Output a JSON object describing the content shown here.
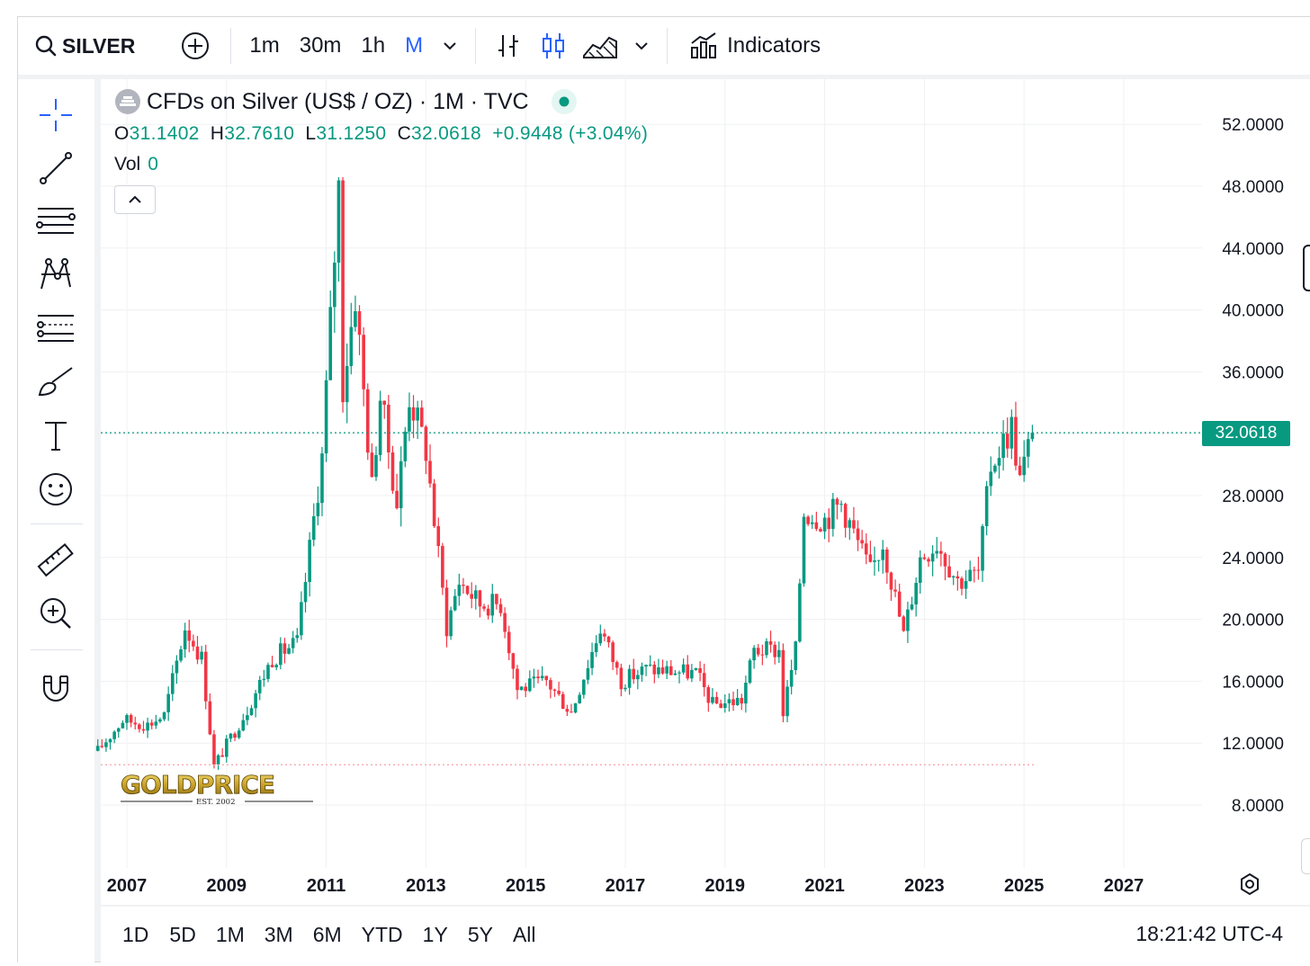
{
  "toolbar": {
    "symbol": "SILVER",
    "intervals": [
      "1m",
      "30m",
      "1h",
      "M"
    ],
    "indicators_label": "Indicators"
  },
  "legend": {
    "title": "CFDs on Silver (US$ / OZ) · 1M · TVC",
    "o_label": "O",
    "o_value": "31.1402",
    "h_label": "H",
    "h_value": "32.7610",
    "l_label": "L",
    "l_value": "31.1250",
    "c_label": "C",
    "c_value": "32.0618",
    "change": "+0.9448 (+3.04%)",
    "vol_label": "Vol",
    "vol_value": "0"
  },
  "price_tag": "32.0618",
  "logo": {
    "text": "GOLDPRICE",
    "sub": "EST. 2002"
  },
  "bottom": {
    "ranges": [
      "1D",
      "5D",
      "1M",
      "3M",
      "6M",
      "YTD",
      "1Y",
      "5Y",
      "All"
    ],
    "time": "18:21:42 UTC-4"
  },
  "colors": {
    "up": "#089981",
    "down": "#f23645",
    "accent": "#2962ff"
  },
  "chart_data": {
    "type": "candlestick",
    "title": "CFDs on Silver (US$ / OZ) · 1M · TVC",
    "x_ticks": [
      "2007",
      "2009",
      "2011",
      "2013",
      "2015",
      "2017",
      "2019",
      "2021",
      "2023",
      "2025",
      "2027"
    ],
    "y_ticks": [
      "52.0000",
      "48.0000",
      "44.0000",
      "40.0000",
      "36.0000",
      "32.0000",
      "28.0000",
      "24.0000",
      "20.0000",
      "16.0000",
      "12.0000",
      "8.0000"
    ],
    "ylim": [
      8,
      52
    ],
    "last_price": 32.0618,
    "low_line": 10.6,
    "grid": true,
    "keypoints": [
      {
        "d": "2006-06",
        "p": 11.5
      },
      {
        "d": "2006-12",
        "p": 13.5
      },
      {
        "d": "2007-06",
        "p": 13.2
      },
      {
        "d": "2007-10",
        "p": 13.8
      },
      {
        "d": "2008-03",
        "p": 19.5
      },
      {
        "d": "2008-07",
        "p": 17.5
      },
      {
        "d": "2008-10",
        "p": 10.5
      },
      {
        "d": "2009-06",
        "p": 14.2
      },
      {
        "d": "2009-12",
        "p": 17.5
      },
      {
        "d": "2010-06",
        "p": 18.5
      },
      {
        "d": "2010-12",
        "p": 30.5
      },
      {
        "d": "2011-04",
        "p": 48.0
      },
      {
        "d": "2011-05",
        "p": 35.0
      },
      {
        "d": "2011-08",
        "p": 41.0
      },
      {
        "d": "2011-12",
        "p": 28.5
      },
      {
        "d": "2012-02",
        "p": 34.5
      },
      {
        "d": "2012-06",
        "p": 27.5
      },
      {
        "d": "2012-09",
        "p": 34.5
      },
      {
        "d": "2013-01",
        "p": 31.0
      },
      {
        "d": "2013-06",
        "p": 19.5
      },
      {
        "d": "2013-09",
        "p": 22.5
      },
      {
        "d": "2014-02",
        "p": 21.0
      },
      {
        "d": "2014-07",
        "p": 21.0
      },
      {
        "d": "2014-11",
        "p": 15.5
      },
      {
        "d": "2015-06",
        "p": 16.0
      },
      {
        "d": "2015-12",
        "p": 14.0
      },
      {
        "d": "2016-07",
        "p": 19.5
      },
      {
        "d": "2016-12",
        "p": 16.0
      },
      {
        "d": "2017-06",
        "p": 16.8
      },
      {
        "d": "2018-06",
        "p": 16.5
      },
      {
        "d": "2018-10",
        "p": 14.5
      },
      {
        "d": "2019-05",
        "p": 14.8
      },
      {
        "d": "2019-08",
        "p": 18.0
      },
      {
        "d": "2020-02",
        "p": 18.0
      },
      {
        "d": "2020-03",
        "p": 14.0
      },
      {
        "d": "2020-06",
        "p": 18.0
      },
      {
        "d": "2020-08",
        "p": 27.0
      },
      {
        "d": "2021-01",
        "p": 26.5
      },
      {
        "d": "2021-05",
        "p": 27.5
      },
      {
        "d": "2021-12",
        "p": 23.0
      },
      {
        "d": "2022-03",
        "p": 25.0
      },
      {
        "d": "2022-08",
        "p": 19.0
      },
      {
        "d": "2022-12",
        "p": 24.0
      },
      {
        "d": "2023-04",
        "p": 25.0
      },
      {
        "d": "2023-09",
        "p": 22.5
      },
      {
        "d": "2024-02",
        "p": 23.0
      },
      {
        "d": "2024-05",
        "p": 30.0
      },
      {
        "d": "2024-10",
        "p": 32.5
      },
      {
        "d": "2024-12",
        "p": 29.0
      },
      {
        "d": "2025-03",
        "p": 32.06
      }
    ]
  }
}
